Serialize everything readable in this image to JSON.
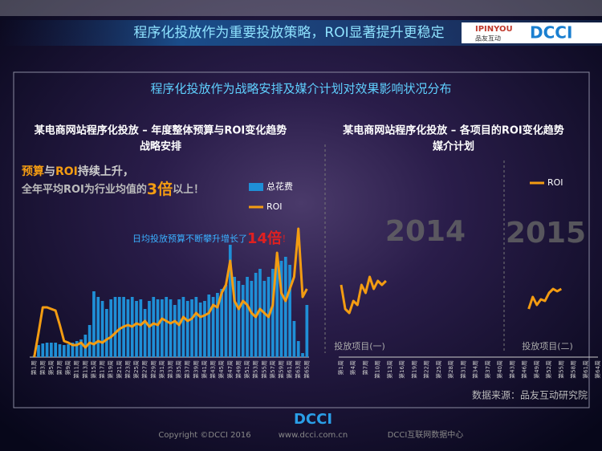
{
  "header": {
    "title": "程序化投放作为重要投放策略，ROI显著提升更稳定",
    "logo_brand": "IPINYOU",
    "logo_brand_cn": "品友互动",
    "logo_dcci": "DCCI"
  },
  "section_title": "程序化投放作为战略安排及媒介计划对效果影响状况分布",
  "chart_data": [
    {
      "type": "bar",
      "title": "某电商网站程序化投放 – 年度整体预算与ROI变化趋势",
      "subtitle": "战略安排",
      "annotations": [
        [
          "预算",
          "与",
          "ROI",
          "持续上升，"
        ],
        [
          "全年平均ROI为行业均值的",
          "3倍",
          "以上！"
        ],
        [
          "日均投放预算不断攀升增长了",
          "14倍",
          "！"
        ]
      ],
      "categories": [
        "第1周",
        null,
        "第3周",
        null,
        "第5周",
        null,
        "第7周",
        null,
        "第9周",
        null,
        "第11周",
        null,
        "第13周",
        null,
        "第15周",
        null,
        "第17周",
        null,
        "第19周",
        null,
        "第21周",
        null,
        "第23周",
        null,
        "第25周",
        null,
        "第27周",
        null,
        "第29周",
        null,
        "第31周",
        null,
        "第33周",
        null,
        "第35周",
        null,
        "第37周",
        null,
        "第39周",
        null,
        "第41周",
        null,
        "第43周",
        null,
        "第45周",
        null,
        "第47周",
        null,
        "第49周",
        null,
        "第51周",
        null,
        "第53周",
        null,
        "第55周",
        null,
        "第57周",
        null,
        "第59周",
        null,
        "第61周",
        null,
        "第63周",
        null,
        "第65周"
      ],
      "series": [
        {
          "name": "总花费",
          "type": "bar",
          "color": "#1f8fd6",
          "values": [
            2,
            15,
            17,
            18,
            18,
            18,
            16,
            15,
            16,
            18,
            20,
            22,
            28,
            40,
            82,
            75,
            70,
            60,
            72,
            75,
            75,
            75,
            72,
            75,
            70,
            72,
            60,
            70,
            75,
            72,
            72,
            75,
            72,
            65,
            72,
            75,
            70,
            72,
            75,
            68,
            70,
            78,
            75,
            80,
            85,
            90,
            140,
            100,
            95,
            90,
            100,
            95,
            105,
            110,
            95,
            100,
            110,
            115,
            120,
            125,
            115,
            45,
            20,
            5,
            65
          ]
        },
        {
          "name": "ROI",
          "type": "line",
          "axis": "y2",
          "color": "#f39c12",
          "values": [
            0,
            30,
            62,
            62,
            60,
            58,
            40,
            20,
            18,
            15,
            15,
            18,
            12,
            18,
            16,
            20,
            18,
            22,
            25,
            30,
            35,
            38,
            40,
            38,
            42,
            40,
            45,
            38,
            42,
            40,
            48,
            45,
            42,
            45,
            40,
            50,
            45,
            48,
            55,
            50,
            52,
            55,
            65,
            62,
            80,
            90,
            120,
            70,
            60,
            70,
            65,
            55,
            50,
            60,
            55,
            50,
            65,
            130,
            80,
            70,
            85,
            100,
            160,
            75,
            85
          ]
        }
      ],
      "ylim": [
        0,
        170
      ],
      "y2lim": [
        0,
        170
      ]
    },
    {
      "type": "line",
      "title": "某电商网站程序化投放 – 各项目的ROI变化趋势",
      "subtitle": "媒介计划",
      "group_labels": [
        "投放项目(一)",
        "投放项目(二)"
      ],
      "year_labels": [
        "2014",
        "2015"
      ],
      "categories": [
        "第1周",
        null,
        null,
        "第4周",
        null,
        null,
        "第7周",
        null,
        null,
        "第10周",
        null,
        null,
        "第13周",
        null,
        null,
        "第16周",
        null,
        null,
        "第19周",
        null,
        null,
        "第22周",
        null,
        null,
        "第25周",
        null,
        null,
        "第28周",
        null,
        null,
        "第31周",
        null,
        null,
        "第34周",
        null,
        null,
        "第37周",
        null,
        null,
        "第40周",
        null,
        null,
        "第43周",
        null,
        null,
        "第46周",
        null,
        null,
        "第49周",
        null,
        null,
        "第52周",
        null,
        null,
        "第55周",
        null,
        null,
        "第58周",
        null,
        null,
        "第61周",
        null,
        null,
        "第64周"
      ],
      "series": [
        {
          "name": "ROI",
          "color": "#f39c12",
          "values": [
            90,
            60,
            55,
            70,
            65,
            90,
            80,
            100,
            85,
            95,
            90,
            95,
            null,
            null,
            null,
            null,
            null,
            null,
            null,
            null,
            null,
            null,
            null,
            null,
            null,
            null,
            null,
            null,
            null,
            null,
            null,
            null,
            null,
            null,
            null,
            null,
            null,
            null,
            null,
            null,
            null,
            null,
            null,
            null,
            null,
            null,
            60,
            75,
            65,
            72,
            70,
            80,
            85,
            82,
            85,
            null,
            null,
            null,
            null,
            null,
            null,
            null,
            null,
            null
          ]
        }
      ],
      "ylim": [
        0,
        170
      ]
    }
  ],
  "source": "数据来源：品友互动研究院",
  "footer": {
    "logo": "DCCI",
    "copyright": "Copyright ©DCCI 2016",
    "url": "www.dcci.com.cn",
    "org": "DCCI互联网数据中心"
  }
}
